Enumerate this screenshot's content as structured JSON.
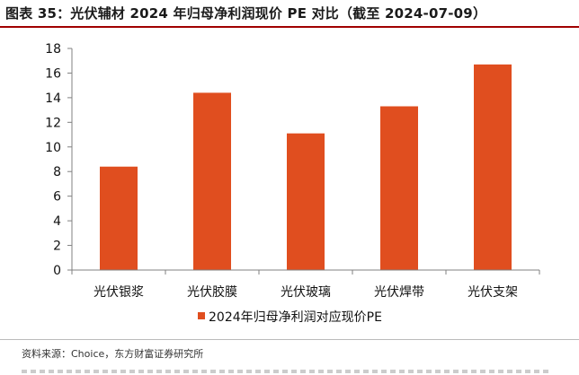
{
  "title": "图表 35：光伏辅材 2024 年归母净利润现价 PE 对比（截至 2024-07-09）",
  "source": "资料来源：Choice，东方财富证券研究所",
  "colors": {
    "bar": "#E04E1F",
    "title_rule": "#a00000"
  },
  "chart_data": {
    "type": "bar",
    "categories": [
      "光伏银浆",
      "光伏胶膜",
      "光伏玻璃",
      "光伏焊带",
      "光伏支架"
    ],
    "series": [
      {
        "name": "2024年归母净利润对应现价PE",
        "values": [
          8.4,
          14.4,
          11.1,
          13.3,
          16.7
        ]
      }
    ],
    "ylim": [
      0,
      18
    ],
    "yticks": [
      0,
      2,
      4,
      6,
      8,
      10,
      12,
      14,
      16,
      18
    ],
    "xlabel": "",
    "ylabel": "",
    "grid": false,
    "legend_position": "bottom"
  }
}
